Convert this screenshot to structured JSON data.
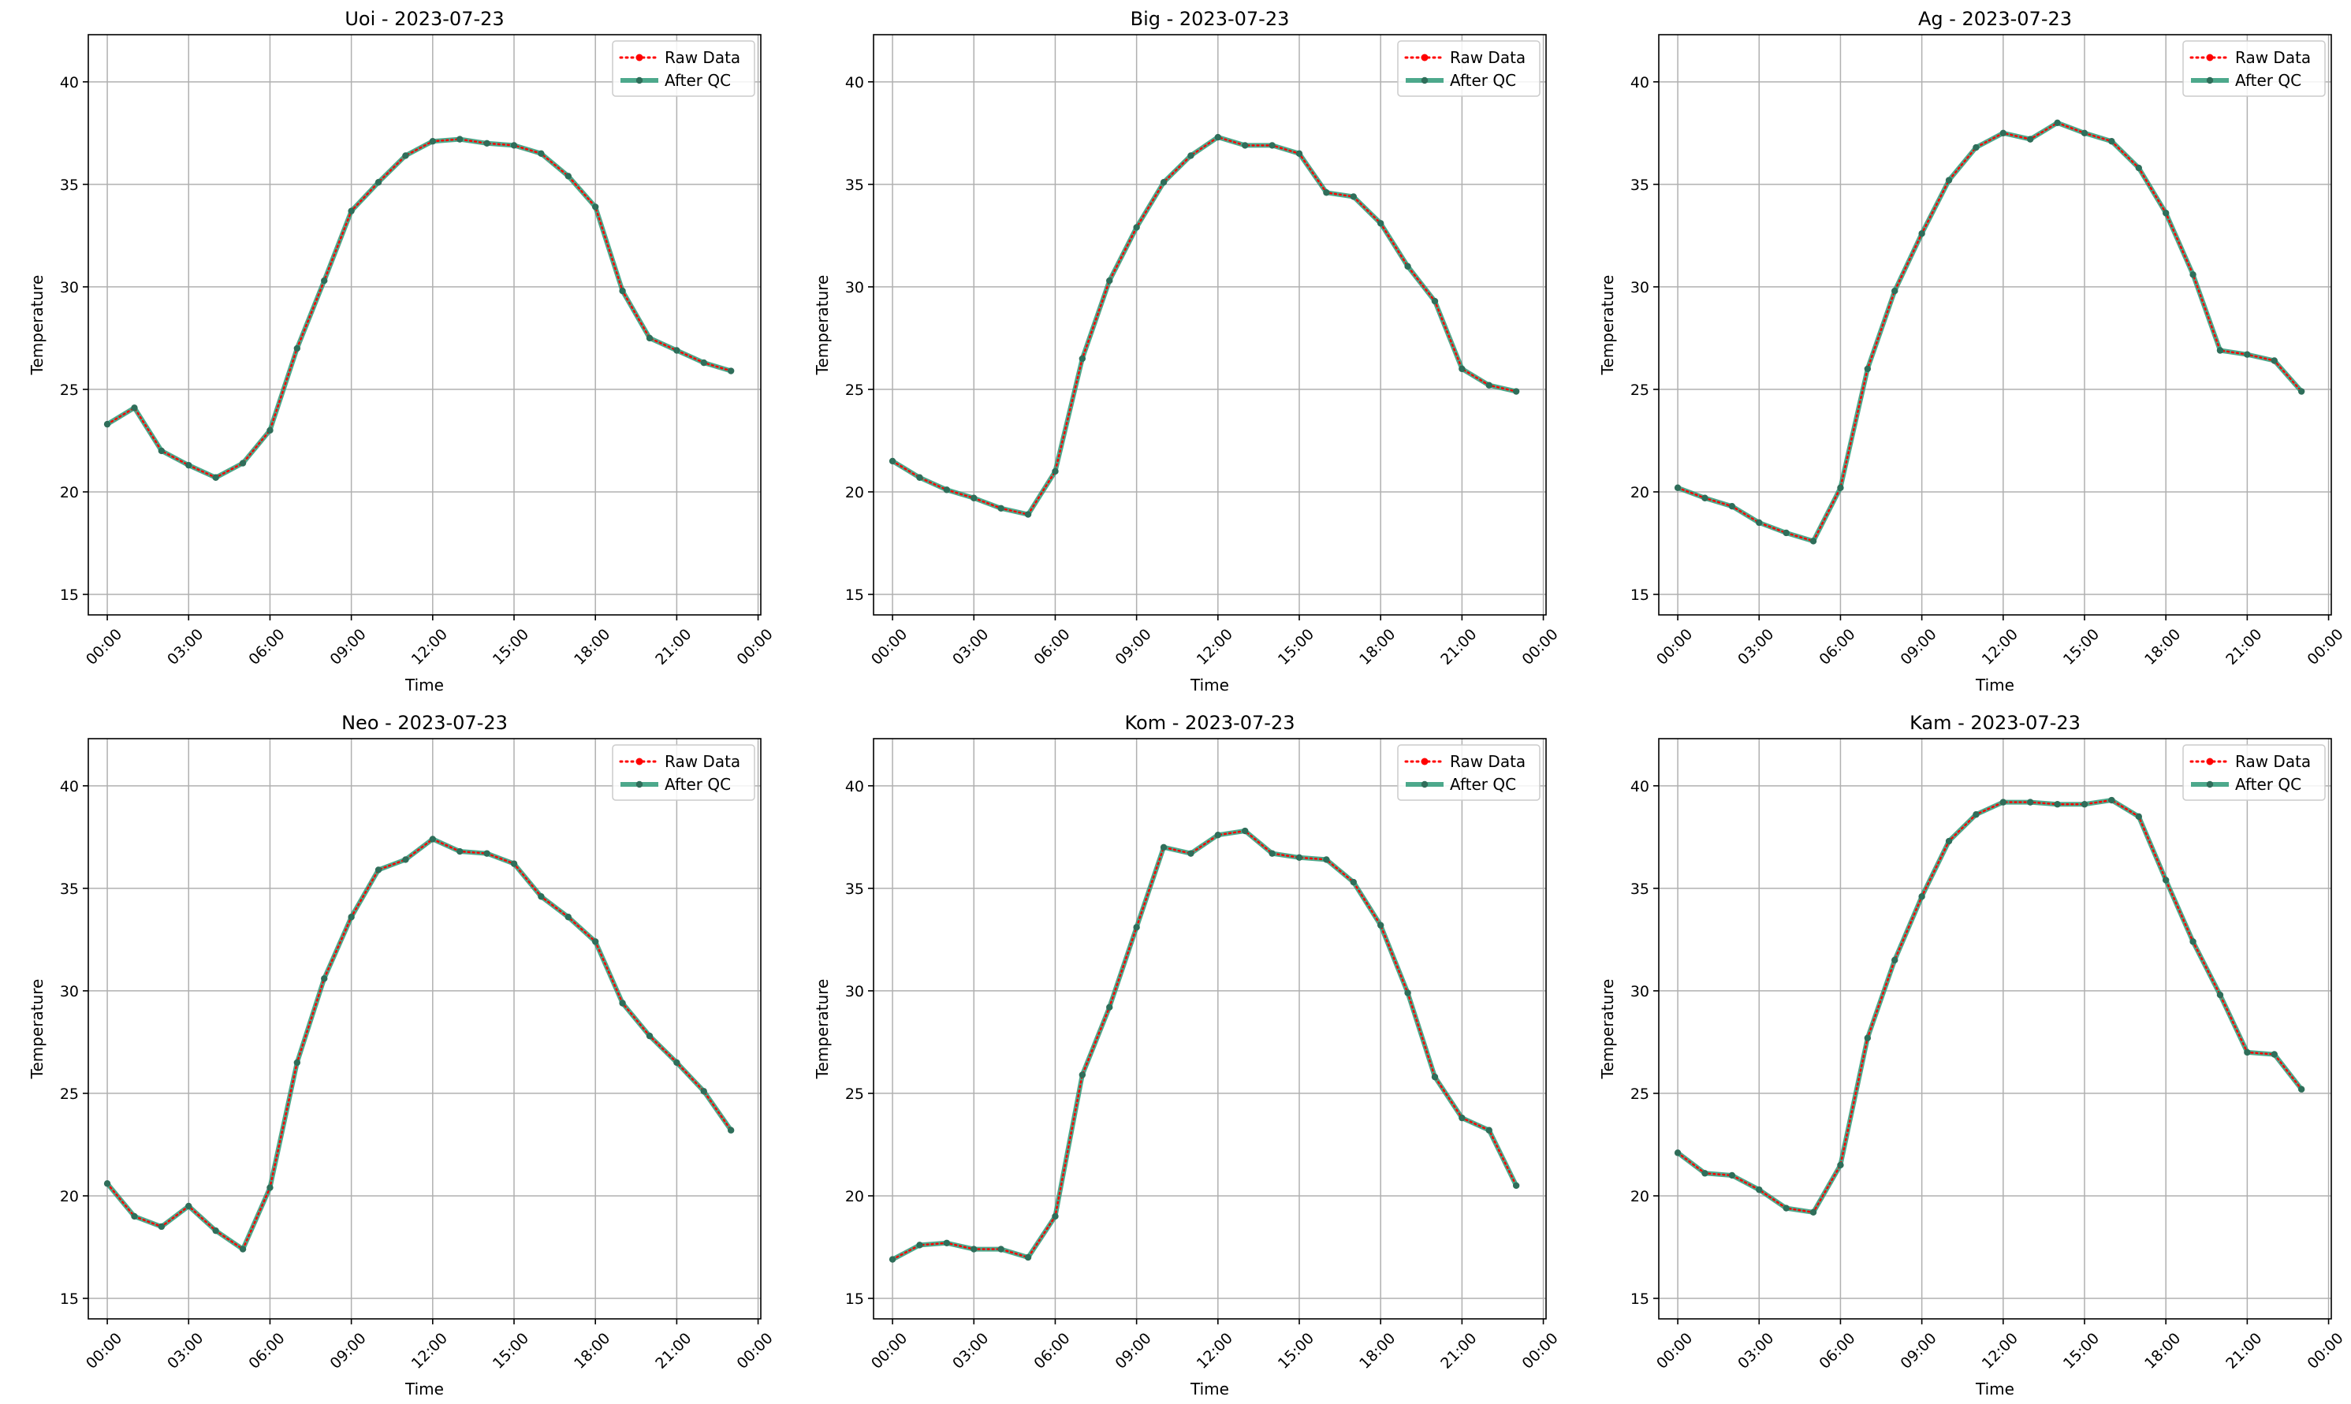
{
  "colors": {
    "raw": "#ff0000",
    "qc": "#2e9a78",
    "marker": "#2f6e5a"
  },
  "chart_data": [
    {
      "type": "line",
      "title": "Uoi - 2023-07-23",
      "xlabel": "Time",
      "ylabel": "Temperature",
      "ylim": [
        14,
        42.3
      ],
      "xlim": [
        -0.7,
        24.1
      ],
      "yticks": [
        15,
        20,
        25,
        30,
        35,
        40
      ],
      "xticks": [
        0,
        3,
        6,
        9,
        12,
        15,
        18,
        21,
        24
      ],
      "xtick_labels": [
        "00:00",
        "03:00",
        "06:00",
        "09:00",
        "12:00",
        "15:00",
        "18:00",
        "21:00",
        "00:00"
      ],
      "grid": true,
      "legend": "upper right",
      "x": [
        0,
        1,
        2,
        3,
        4,
        5,
        6,
        7,
        8,
        9,
        10,
        11,
        12,
        13,
        14,
        15,
        16,
        17,
        18,
        19,
        20,
        21,
        22,
        23
      ],
      "series": [
        {
          "name": "Raw Data",
          "style": "dotted",
          "values": [
            23.3,
            24.1,
            22.0,
            21.3,
            20.7,
            21.4,
            23.0,
            27.0,
            30.3,
            33.7,
            35.1,
            36.4,
            37.1,
            37.2,
            37.0,
            36.9,
            36.5,
            35.4,
            33.9,
            29.8,
            27.5,
            26.9,
            26.3,
            25.9
          ]
        },
        {
          "name": "After QC",
          "style": "solid",
          "values": [
            23.3,
            24.1,
            22.0,
            21.3,
            20.7,
            21.4,
            23.0,
            27.0,
            30.3,
            33.7,
            35.1,
            36.4,
            37.1,
            37.2,
            37.0,
            36.9,
            36.5,
            35.4,
            33.9,
            29.8,
            27.5,
            26.9,
            26.3,
            25.9
          ]
        }
      ]
    },
    {
      "type": "line",
      "title": "Big - 2023-07-23",
      "xlabel": "Time",
      "ylabel": "Temperature",
      "ylim": [
        14,
        42.3
      ],
      "xlim": [
        -0.7,
        24.1
      ],
      "yticks": [
        15,
        20,
        25,
        30,
        35,
        40
      ],
      "xticks": [
        0,
        3,
        6,
        9,
        12,
        15,
        18,
        21,
        24
      ],
      "xtick_labels": [
        "00:00",
        "03:00",
        "06:00",
        "09:00",
        "12:00",
        "15:00",
        "18:00",
        "21:00",
        "00:00"
      ],
      "grid": true,
      "legend": "upper right",
      "x": [
        0,
        1,
        2,
        3,
        4,
        5,
        6,
        7,
        8,
        9,
        10,
        11,
        12,
        13,
        14,
        15,
        16,
        17,
        18,
        19,
        20,
        21,
        22,
        23
      ],
      "series": [
        {
          "name": "Raw Data",
          "style": "dotted",
          "values": [
            21.5,
            20.7,
            20.1,
            19.7,
            19.2,
            18.9,
            21.0,
            26.5,
            30.3,
            32.9,
            35.1,
            36.4,
            37.3,
            36.9,
            36.9,
            36.5,
            34.6,
            34.4,
            33.1,
            31.0,
            29.3,
            26.0,
            25.2,
            24.9
          ]
        },
        {
          "name": "After QC",
          "style": "solid",
          "values": [
            21.5,
            20.7,
            20.1,
            19.7,
            19.2,
            18.9,
            21.0,
            26.5,
            30.3,
            32.9,
            35.1,
            36.4,
            37.3,
            36.9,
            36.9,
            36.5,
            34.6,
            34.4,
            33.1,
            31.0,
            29.3,
            26.0,
            25.2,
            24.9
          ]
        }
      ]
    },
    {
      "type": "line",
      "title": "Ag - 2023-07-23",
      "xlabel": "Time",
      "ylabel": "Temperature",
      "ylim": [
        14,
        42.3
      ],
      "xlim": [
        -0.7,
        24.1
      ],
      "yticks": [
        15,
        20,
        25,
        30,
        35,
        40
      ],
      "xticks": [
        0,
        3,
        6,
        9,
        12,
        15,
        18,
        21,
        24
      ],
      "xtick_labels": [
        "00:00",
        "03:00",
        "06:00",
        "09:00",
        "12:00",
        "15:00",
        "18:00",
        "21:00",
        "00:00"
      ],
      "grid": true,
      "legend": "upper right",
      "x": [
        0,
        1,
        2,
        3,
        4,
        5,
        6,
        7,
        8,
        9,
        10,
        11,
        12,
        13,
        14,
        15,
        16,
        17,
        18,
        19,
        20,
        21,
        22,
        23
      ],
      "series": [
        {
          "name": "Raw Data",
          "style": "dotted",
          "values": [
            20.2,
            19.7,
            19.3,
            18.5,
            18.0,
            17.6,
            20.2,
            26.0,
            29.8,
            32.6,
            35.2,
            36.8,
            37.5,
            37.2,
            38.0,
            37.5,
            37.1,
            35.8,
            33.6,
            30.6,
            26.9,
            26.7,
            26.4,
            24.9
          ]
        },
        {
          "name": "After QC",
          "style": "solid",
          "values": [
            20.2,
            19.7,
            19.3,
            18.5,
            18.0,
            17.6,
            20.2,
            26.0,
            29.8,
            32.6,
            35.2,
            36.8,
            37.5,
            37.2,
            38.0,
            37.5,
            37.1,
            35.8,
            33.6,
            30.6,
            26.9,
            26.7,
            26.4,
            24.9
          ]
        }
      ]
    },
    {
      "type": "line",
      "title": "Neo - 2023-07-23",
      "xlabel": "Time",
      "ylabel": "Temperature",
      "ylim": [
        14,
        42.3
      ],
      "xlim": [
        -0.7,
        24.1
      ],
      "yticks": [
        15,
        20,
        25,
        30,
        35,
        40
      ],
      "xticks": [
        0,
        3,
        6,
        9,
        12,
        15,
        18,
        21,
        24
      ],
      "xtick_labels": [
        "00:00",
        "03:00",
        "06:00",
        "09:00",
        "12:00",
        "15:00",
        "18:00",
        "21:00",
        "00:00"
      ],
      "grid": true,
      "legend": "upper right",
      "x": [
        0,
        1,
        2,
        3,
        4,
        5,
        6,
        7,
        8,
        9,
        10,
        11,
        12,
        13,
        14,
        15,
        16,
        17,
        18,
        19,
        20,
        21,
        22,
        23
      ],
      "series": [
        {
          "name": "Raw Data",
          "style": "dotted",
          "values": [
            20.6,
            19.0,
            18.5,
            19.5,
            18.3,
            17.4,
            20.4,
            26.5,
            30.6,
            33.6,
            35.9,
            36.4,
            37.4,
            36.8,
            36.7,
            36.2,
            34.6,
            33.6,
            32.4,
            29.4,
            27.8,
            26.5,
            25.1,
            23.2
          ]
        },
        {
          "name": "After QC",
          "style": "solid",
          "values": [
            20.6,
            19.0,
            18.5,
            19.5,
            18.3,
            17.4,
            20.4,
            26.5,
            30.6,
            33.6,
            35.9,
            36.4,
            37.4,
            36.8,
            36.7,
            36.2,
            34.6,
            33.6,
            32.4,
            29.4,
            27.8,
            26.5,
            25.1,
            23.2
          ]
        }
      ]
    },
    {
      "type": "line",
      "title": "Kom - 2023-07-23",
      "xlabel": "Time",
      "ylabel": "Temperature",
      "ylim": [
        14,
        42.3
      ],
      "xlim": [
        -0.7,
        24.1
      ],
      "yticks": [
        15,
        20,
        25,
        30,
        35,
        40
      ],
      "xticks": [
        0,
        3,
        6,
        9,
        12,
        15,
        18,
        21,
        24
      ],
      "xtick_labels": [
        "00:00",
        "03:00",
        "06:00",
        "09:00",
        "12:00",
        "15:00",
        "18:00",
        "21:00",
        "00:00"
      ],
      "grid": true,
      "legend": "upper right",
      "x": [
        0,
        1,
        2,
        3,
        4,
        5,
        6,
        7,
        8,
        9,
        10,
        11,
        12,
        13,
        14,
        15,
        16,
        17,
        18,
        19,
        20,
        21,
        22,
        23
      ],
      "series": [
        {
          "name": "Raw Data",
          "style": "dotted",
          "values": [
            16.9,
            17.6,
            17.7,
            17.4,
            17.4,
            17.0,
            19.0,
            25.9,
            29.2,
            33.1,
            37.0,
            36.7,
            37.6,
            37.8,
            36.7,
            36.5,
            36.4,
            35.3,
            33.2,
            29.9,
            25.8,
            23.8,
            23.2,
            20.5
          ]
        },
        {
          "name": "After QC",
          "style": "solid",
          "values": [
            16.9,
            17.6,
            17.7,
            17.4,
            17.4,
            17.0,
            19.0,
            25.9,
            29.2,
            33.1,
            37.0,
            36.7,
            37.6,
            37.8,
            36.7,
            36.5,
            36.4,
            35.3,
            33.2,
            29.9,
            25.8,
            23.8,
            23.2,
            20.5
          ]
        }
      ]
    },
    {
      "type": "line",
      "title": "Kam - 2023-07-23",
      "xlabel": "Time",
      "ylabel": "Temperature",
      "ylim": [
        14,
        42.3
      ],
      "xlim": [
        -0.7,
        24.1
      ],
      "yticks": [
        15,
        20,
        25,
        30,
        35,
        40
      ],
      "xticks": [
        0,
        3,
        6,
        9,
        12,
        15,
        18,
        21,
        24
      ],
      "xtick_labels": [
        "00:00",
        "03:00",
        "06:00",
        "09:00",
        "12:00",
        "15:00",
        "18:00",
        "21:00",
        "00:00"
      ],
      "grid": true,
      "legend": "upper right",
      "x": [
        0,
        1,
        2,
        3,
        4,
        5,
        6,
        7,
        8,
        9,
        10,
        11,
        12,
        13,
        14,
        15,
        16,
        17,
        18,
        19,
        20,
        21,
        22,
        23
      ],
      "series": [
        {
          "name": "Raw Data",
          "style": "dotted",
          "values": [
            22.1,
            21.1,
            21.0,
            20.3,
            19.4,
            19.2,
            21.5,
            27.7,
            31.5,
            34.6,
            37.3,
            38.6,
            39.2,
            39.2,
            39.1,
            39.1,
            39.3,
            38.5,
            35.4,
            32.4,
            29.8,
            27.0,
            26.9,
            25.2
          ]
        },
        {
          "name": "After QC",
          "style": "solid",
          "values": [
            22.1,
            21.1,
            21.0,
            20.3,
            19.4,
            19.2,
            21.5,
            27.7,
            31.5,
            34.6,
            37.3,
            38.6,
            39.2,
            39.2,
            39.1,
            39.1,
            39.3,
            38.5,
            35.4,
            32.4,
            29.8,
            27.0,
            26.9,
            25.2
          ]
        }
      ]
    }
  ]
}
